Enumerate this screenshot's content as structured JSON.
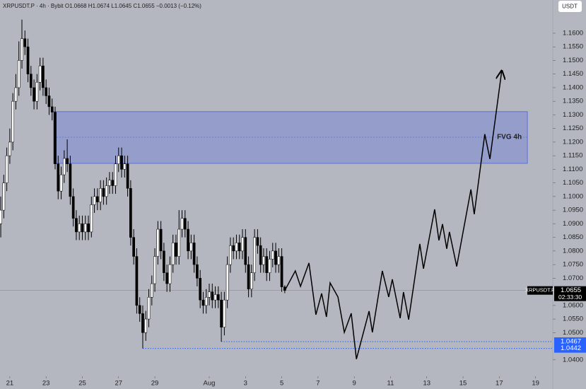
{
  "title": "XRPUSDT.P · 4h · Bybit",
  "subtitle": "O1.0668 H1.0674 L1.0645 C1.0655 −0.0013 (−0.12%)",
  "currency_button": "USDT",
  "chart_data": {
    "type": "candlestick",
    "up_color": "#ffffff",
    "down_color": "#000000",
    "x": [
      0,
      1,
      2,
      3,
      4,
      5,
      6,
      7,
      8,
      9,
      10,
      11,
      12,
      13,
      14,
      15,
      16,
      17,
      18,
      19,
      20,
      21,
      22,
      23,
      24,
      25,
      26,
      27,
      28,
      29,
      30,
      31,
      32,
      33,
      34,
      35,
      36,
      37,
      38,
      39,
      40,
      41,
      42,
      43,
      44,
      45,
      46,
      47,
      48,
      49,
      50,
      51,
      52,
      53,
      54,
      55,
      56,
      57,
      58,
      59,
      60,
      61,
      62,
      63,
      64,
      65,
      66,
      67,
      68,
      69,
      70,
      71,
      72,
      73,
      74,
      75,
      76,
      77,
      78,
      79,
      80,
      81,
      82,
      83,
      84,
      85,
      86,
      87,
      88,
      89,
      90,
      91,
      92,
      93,
      94
    ],
    "open": [
      1.09,
      1.095,
      1.105,
      1.115,
      1.12,
      1.135,
      1.14,
      1.15,
      1.158,
      1.155,
      1.145,
      1.14,
      1.135,
      1.142,
      1.148,
      1.14,
      1.137,
      1.133,
      1.131,
      1.112,
      1.102,
      1.108,
      1.114,
      1.112,
      1.1,
      1.092,
      1.087,
      1.09,
      1.087,
      1.09,
      1.087,
      1.097,
      1.1,
      1.098,
      1.103,
      1.1,
      1.104,
      1.106,
      1.104,
      1.112,
      1.115,
      1.11,
      1.112,
      1.103,
      1.085,
      1.078,
      1.06,
      1.057,
      1.05,
      1.055,
      1.063,
      1.068,
      1.078,
      1.088,
      1.08,
      1.072,
      1.068,
      1.075,
      1.083,
      1.078,
      1.088,
      1.092,
      1.088,
      1.08,
      1.083,
      1.075,
      1.07,
      1.062,
      1.06,
      1.063,
      1.065,
      1.062,
      1.064,
      1.062,
      1.052,
      1.062,
      1.075,
      1.082,
      1.08,
      1.083,
      1.08,
      1.085,
      1.075,
      1.066,
      1.072,
      1.085,
      1.082,
      1.075,
      1.078,
      1.072,
      1.077,
      1.08,
      1.075,
      1.078,
      1.0668
    ],
    "high": [
      1.1,
      1.108,
      1.118,
      1.125,
      1.138,
      1.145,
      1.157,
      1.165,
      1.161,
      1.158,
      1.148,
      1.143,
      1.145,
      1.151,
      1.151,
      1.143,
      1.14,
      1.136,
      1.133,
      1.115,
      1.111,
      1.117,
      1.121,
      1.115,
      1.103,
      1.095,
      1.093,
      1.093,
      1.093,
      1.093,
      1.1,
      1.103,
      1.103,
      1.106,
      1.106,
      1.107,
      1.109,
      1.109,
      1.115,
      1.118,
      1.118,
      1.115,
      1.115,
      1.106,
      1.088,
      1.081,
      1.063,
      1.06,
      1.058,
      1.066,
      1.071,
      1.081,
      1.091,
      1.091,
      1.083,
      1.075,
      1.078,
      1.086,
      1.086,
      1.095,
      1.095,
      1.095,
      1.091,
      1.086,
      1.086,
      1.078,
      1.073,
      1.065,
      1.066,
      1.068,
      1.068,
      1.067,
      1.067,
      1.065,
      1.065,
      1.078,
      1.085,
      1.085,
      1.086,
      1.086,
      1.088,
      1.088,
      1.078,
      1.075,
      1.088,
      1.088,
      1.085,
      1.081,
      1.081,
      1.08,
      1.083,
      1.083,
      1.081,
      1.081,
      1.0674
    ],
    "low": [
      1.085,
      1.092,
      1.102,
      1.112,
      1.117,
      1.132,
      1.137,
      1.147,
      1.152,
      1.142,
      1.137,
      1.132,
      1.132,
      1.139,
      1.137,
      1.134,
      1.13,
      1.128,
      1.11,
      1.099,
      1.099,
      1.105,
      1.109,
      1.097,
      1.089,
      1.084,
      1.084,
      1.084,
      1.084,
      1.084,
      1.085,
      1.094,
      1.095,
      1.095,
      1.097,
      1.097,
      1.101,
      1.101,
      1.101,
      1.109,
      1.107,
      1.107,
      1.1,
      1.082,
      1.075,
      1.057,
      1.054,
      1.0442,
      1.047,
      1.052,
      1.06,
      1.065,
      1.075,
      1.077,
      1.069,
      1.065,
      1.065,
      1.072,
      1.075,
      1.075,
      1.085,
      1.085,
      1.077,
      1.077,
      1.072,
      1.067,
      1.059,
      1.057,
      1.057,
      1.06,
      1.059,
      1.059,
      1.059,
      1.0467,
      1.049,
      1.059,
      1.072,
      1.077,
      1.077,
      1.077,
      1.077,
      1.072,
      1.063,
      1.063,
      1.069,
      1.079,
      1.072,
      1.072,
      1.069,
      1.069,
      1.074,
      1.072,
      1.072,
      1.065,
      1.0645
    ],
    "close": [
      1.095,
      1.105,
      1.115,
      1.12,
      1.135,
      1.14,
      1.15,
      1.158,
      1.155,
      1.145,
      1.14,
      1.135,
      1.142,
      1.148,
      1.14,
      1.137,
      1.133,
      1.131,
      1.112,
      1.102,
      1.108,
      1.114,
      1.112,
      1.1,
      1.092,
      1.087,
      1.09,
      1.087,
      1.09,
      1.087,
      1.097,
      1.1,
      1.098,
      1.103,
      1.1,
      1.104,
      1.106,
      1.104,
      1.112,
      1.115,
      1.11,
      1.112,
      1.103,
      1.085,
      1.078,
      1.06,
      1.057,
      1.05,
      1.055,
      1.063,
      1.068,
      1.078,
      1.088,
      1.08,
      1.072,
      1.068,
      1.075,
      1.083,
      1.078,
      1.088,
      1.092,
      1.088,
      1.08,
      1.083,
      1.075,
      1.07,
      1.062,
      1.06,
      1.063,
      1.065,
      1.062,
      1.064,
      1.062,
      1.052,
      1.062,
      1.075,
      1.082,
      1.08,
      1.083,
      1.08,
      1.085,
      1.075,
      1.066,
      1.072,
      1.085,
      1.082,
      1.075,
      1.078,
      1.072,
      1.077,
      1.08,
      1.075,
      1.078,
      1.0668,
      1.0655
    ],
    "projection": {
      "color": "#000000",
      "x": [
        94,
        97.5,
        99.2,
        102,
        104.3,
        106.2,
        107.8,
        109,
        111.6,
        113.7,
        116,
        117.7,
        121.9,
        123,
        126.3,
        128.4,
        129.6,
        132.2,
        133.3,
        135,
        138.7,
        139.9,
        143.6,
        145,
        146.2,
        147.6,
        148.5,
        150.9,
        155.6,
        156.7,
        160.2,
        161.9,
        165.8
      ],
      "values": [
        1.0655,
        1.0727,
        1.067,
        1.0756,
        1.0566,
        1.0644,
        1.0558,
        1.0683,
        1.0631,
        1.0501,
        1.0571,
        1.0403,
        1.0579,
        1.0501,
        1.0727,
        1.0631,
        1.0696,
        1.0553,
        1.0649,
        1.0548,
        1.0826,
        1.0735,
        1.0953,
        1.0839,
        1.0899,
        1.0808,
        1.087,
        1.0743,
        1.1026,
        1.0935,
        1.1229,
        1.1138,
        1.1462
      ]
    },
    "zone": {
      "label": "FVG 4h",
      "top": 1.1312,
      "bottom": 1.1122,
      "mid": 1.1218,
      "x_start": 17.5,
      "x_end": 174.3,
      "color": "#5b6ee1"
    },
    "price_lines": [
      {
        "value": 1.0467,
        "x_start": 73,
        "color": "#2962ff"
      },
      {
        "value": 1.0442,
        "x_start": 47,
        "color": "#2962ff"
      }
    ],
    "last_price": {
      "value": 1.0655,
      "symbol": "XRPUSDT.P",
      "countdown": "02:33:30"
    },
    "xlim": [
      -0.25,
      182.7
    ],
    "xticks": [
      {
        "value": 3,
        "label": "21"
      },
      {
        "value": 15,
        "label": "23"
      },
      {
        "value": 27,
        "label": "25"
      },
      {
        "value": 39,
        "label": "27"
      },
      {
        "value": 51,
        "label": "29"
      },
      {
        "value": 69,
        "label": "Aug"
      },
      {
        "value": 81,
        "label": "3"
      },
      {
        "value": 93,
        "label": "5"
      },
      {
        "value": 105,
        "label": "7"
      },
      {
        "value": 117,
        "label": "9"
      },
      {
        "value": 129,
        "label": "11"
      },
      {
        "value": 141,
        "label": "13"
      },
      {
        "value": 153,
        "label": "15"
      },
      {
        "value": 165,
        "label": "17"
      },
      {
        "value": 177,
        "label": "19"
      }
    ],
    "ylim": [
      1.0293,
      1.1722
    ],
    "yticks": [
      {
        "value": 1.16,
        "label": "1.1600"
      },
      {
        "value": 1.155,
        "label": "1.1550"
      },
      {
        "value": 1.15,
        "label": "1.1500"
      },
      {
        "value": 1.145,
        "label": "1.1450"
      },
      {
        "value": 1.14,
        "label": "1.1400"
      },
      {
        "value": 1.135,
        "label": "1.1350"
      },
      {
        "value": 1.13,
        "label": "1.1300"
      },
      {
        "value": 1.125,
        "label": "1.1250"
      },
      {
        "value": 1.12,
        "label": "1.1200"
      },
      {
        "value": 1.115,
        "label": "1.1150"
      },
      {
        "value": 1.11,
        "label": "1.1100"
      },
      {
        "value": 1.105,
        "label": "1.1050"
      },
      {
        "value": 1.1,
        "label": "1.1000"
      },
      {
        "value": 1.095,
        "label": "1.0950"
      },
      {
        "value": 1.09,
        "label": "1.0900"
      },
      {
        "value": 1.085,
        "label": "1.0850"
      },
      {
        "value": 1.08,
        "label": "1.0800"
      },
      {
        "value": 1.075,
        "label": "1.0750"
      },
      {
        "value": 1.07,
        "label": "1.0700"
      },
      {
        "value": 1.06,
        "label": "1.0600"
      },
      {
        "value": 1.055,
        "label": "1.0550"
      },
      {
        "value": 1.05,
        "label": "1.0500"
      },
      {
        "value": 1.04,
        "label": "1.0400"
      }
    ]
  }
}
